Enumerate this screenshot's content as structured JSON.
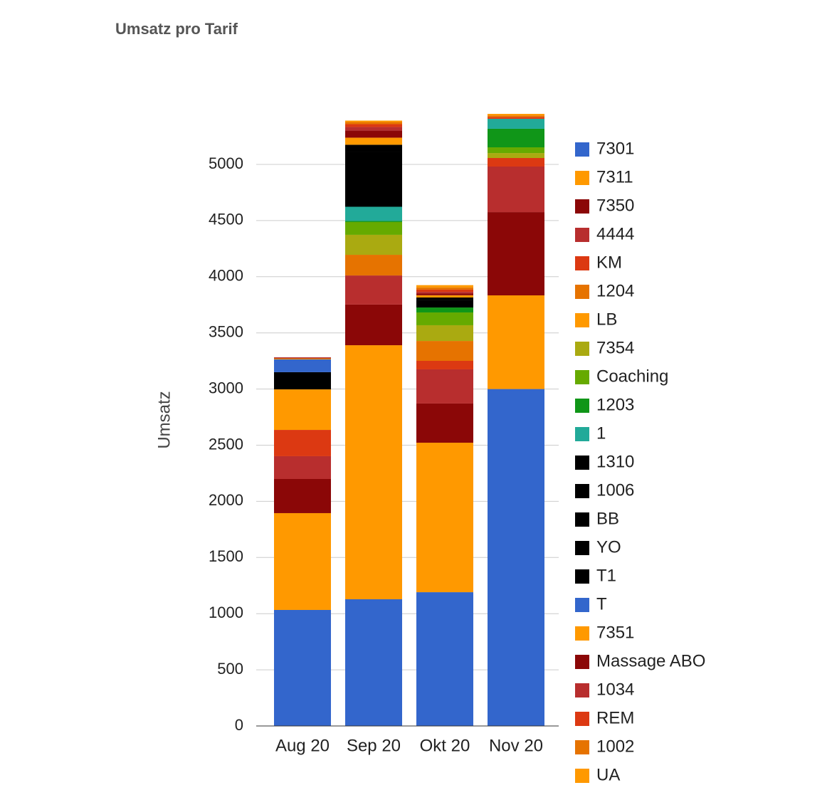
{
  "chart_data": {
    "type": "bar",
    "stacked": true,
    "title": "Umsatz pro Tarif",
    "y_label": "Umsatz",
    "categories": [
      "Aug 20",
      "Sep 20",
      "Okt 20",
      "Nov 20"
    ],
    "ylim": [
      0,
      5500
    ],
    "yticks": [
      0,
      500,
      1000,
      1500,
      2000,
      2500,
      3000,
      3500,
      4000,
      4500,
      5000
    ],
    "grid": true,
    "legend": "right",
    "series": [
      {
        "name": "7301",
        "color": "#3366cc",
        "values": [
          1033,
          1128,
          1191,
          3000
        ]
      },
      {
        "name": "7311",
        "color": "#ff9900",
        "values": [
          862,
          2262,
          1331,
          834
        ]
      },
      {
        "name": "7350",
        "color": "#8b0707",
        "values": [
          304,
          362,
          349,
          741
        ]
      },
      {
        "name": "4444",
        "color": "#b82e2e",
        "values": [
          203,
          259,
          304,
          406
        ]
      },
      {
        "name": "KM",
        "color": "#dc3912",
        "values": [
          234,
          0,
          76,
          76
        ]
      },
      {
        "name": "1204",
        "color": "#e67300",
        "values": [
          0,
          184,
          177,
          0
        ]
      },
      {
        "name": "LB",
        "color": "#ff9900",
        "values": [
          361,
          0,
          0,
          0
        ]
      },
      {
        "name": "7354",
        "color": "#aaaa11",
        "values": [
          0,
          178,
          140,
          44
        ]
      },
      {
        "name": "Coaching",
        "color": "#66aa00",
        "values": [
          0,
          114,
          114,
          51
        ]
      },
      {
        "name": "1203",
        "color": "#109618",
        "values": [
          0,
          10,
          44,
          165
        ]
      },
      {
        "name": "1",
        "color": "#22aa99",
        "values": [
          0,
          126,
          0,
          89
        ]
      },
      {
        "name": "1310",
        "color": "#000000",
        "values": [
          153,
          488,
          64,
          0
        ]
      },
      {
        "name": "1006",
        "color": "#000000",
        "values": [
          0,
          64,
          25,
          0
        ]
      },
      {
        "name": "BB",
        "color": "#000000",
        "values": [
          0,
          0,
          0,
          0
        ]
      },
      {
        "name": "YO",
        "color": "#000000",
        "values": [
          0,
          0,
          0,
          0
        ]
      },
      {
        "name": "T1",
        "color": "#000000",
        "values": [
          0,
          0,
          0,
          0
        ]
      },
      {
        "name": "T",
        "color": "#3366cc",
        "values": [
          114,
          0,
          0,
          0
        ]
      },
      {
        "name": "7351",
        "color": "#ff9900",
        "values": [
          8,
          63,
          20,
          0
        ]
      },
      {
        "name": "Massage ABO",
        "color": "#8b0707",
        "values": [
          6,
          64,
          15,
          0
        ]
      },
      {
        "name": "1034",
        "color": "#b82e2e",
        "values": [
          5,
          31,
          15,
          0
        ]
      },
      {
        "name": "REM",
        "color": "#dc3912",
        "values": [
          0,
          25,
          20,
          15
        ]
      },
      {
        "name": "1002",
        "color": "#e67300",
        "values": [
          0,
          19,
          20,
          15
        ]
      },
      {
        "name": "UA",
        "color": "#ff9900",
        "values": [
          0,
          13,
          20,
          14
        ]
      }
    ]
  }
}
